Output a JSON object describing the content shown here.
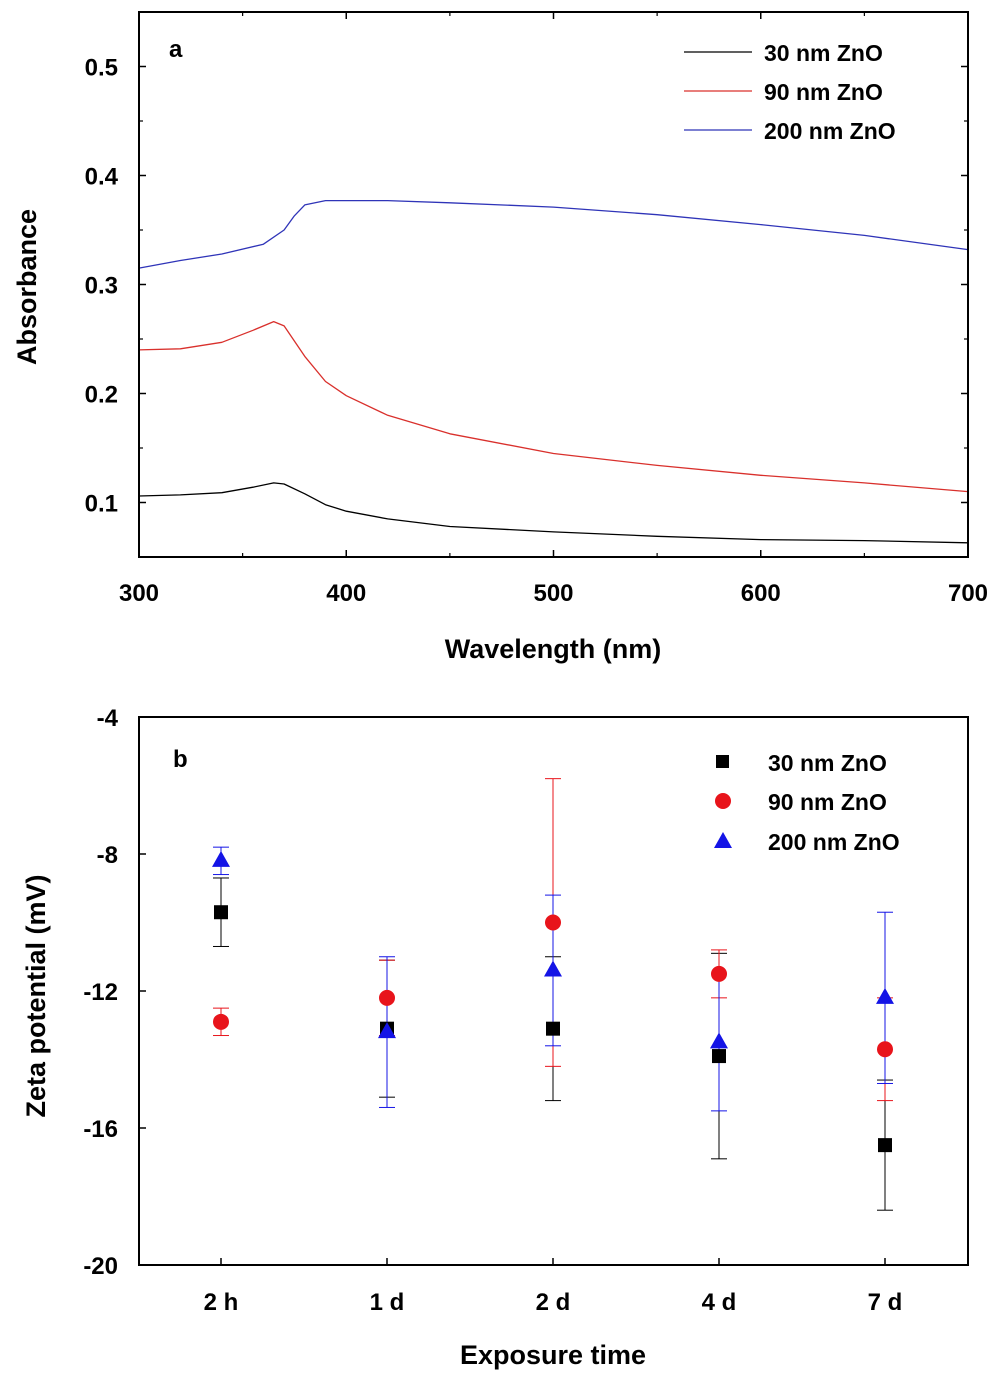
{
  "chart_data": [
    {
      "type": "line",
      "panel_label": "a",
      "xlabel": "Wavelength (nm)",
      "ylabel": "Absorbance",
      "xlim": [
        300,
        700
      ],
      "ylim": [
        0.05,
        0.55
      ],
      "xticks": [
        300,
        400,
        500,
        600,
        700
      ],
      "yticks": [
        0.1,
        0.2,
        0.3,
        0.4,
        0.5
      ],
      "legend_position": "top-right",
      "series": [
        {
          "name": "30 nm ZnO",
          "color": "#000000",
          "x": [
            300,
            320,
            340,
            355,
            365,
            370,
            380,
            390,
            400,
            420,
            450,
            500,
            550,
            600,
            650,
            700
          ],
          "y": [
            0.106,
            0.107,
            0.109,
            0.114,
            0.118,
            0.117,
            0.108,
            0.098,
            0.092,
            0.085,
            0.078,
            0.073,
            0.069,
            0.066,
            0.065,
            0.063
          ]
        },
        {
          "name": "90 nm ZnO",
          "color": "#d9302c",
          "x": [
            300,
            320,
            340,
            355,
            365,
            370,
            380,
            390,
            400,
            420,
            450,
            500,
            550,
            600,
            650,
            700
          ],
          "y": [
            0.24,
            0.241,
            0.247,
            0.258,
            0.266,
            0.262,
            0.234,
            0.211,
            0.198,
            0.18,
            0.163,
            0.145,
            0.134,
            0.125,
            0.118,
            0.11
          ]
        },
        {
          "name": "200 nm ZnO",
          "color": "#2f34b8",
          "x": [
            300,
            320,
            340,
            360,
            370,
            375,
            380,
            390,
            400,
            420,
            450,
            500,
            550,
            600,
            650,
            700
          ],
          "y": [
            0.315,
            0.322,
            0.328,
            0.337,
            0.35,
            0.363,
            0.373,
            0.377,
            0.377,
            0.377,
            0.375,
            0.371,
            0.364,
            0.355,
            0.345,
            0.332
          ]
        }
      ]
    },
    {
      "type": "scatter",
      "panel_label": "b",
      "xlabel": "Exposure time",
      "ylabel": "Zeta potential (mV)",
      "categories": [
        "2 h",
        "1 d",
        "2 d",
        "4 d",
        "7 d"
      ],
      "ylim": [
        -20,
        -4
      ],
      "yticks": [
        -20,
        -16,
        -12,
        -8,
        -4
      ],
      "legend_position": "top-right",
      "series": [
        {
          "name": "30 nm ZnO",
          "marker": "square",
          "color": "#000000",
          "values": [
            -9.7,
            -13.1,
            -13.1,
            -13.9,
            -16.5
          ],
          "errors": [
            1.0,
            2.0,
            2.1,
            3.0,
            1.9
          ]
        },
        {
          "name": "90 nm ZnO",
          "marker": "circle",
          "color": "#e8141b",
          "values": [
            -12.9,
            -12.2,
            -10.0,
            -11.5,
            -13.7
          ],
          "errors": [
            0.4,
            1.1,
            4.2,
            0.7,
            1.5
          ]
        },
        {
          "name": "200 nm ZnO",
          "marker": "triangle",
          "color": "#1414e6",
          "values": [
            -8.2,
            -13.2,
            -11.4,
            -13.5,
            -12.2
          ],
          "errors": [
            0.4,
            2.2,
            2.2,
            2.0,
            2.5
          ]
        }
      ]
    }
  ]
}
